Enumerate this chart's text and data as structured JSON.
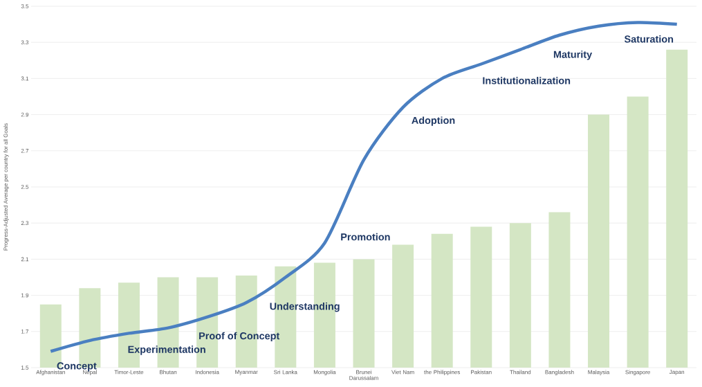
{
  "chart_data": {
    "type": "bar",
    "ylabel": "Progress-Adjusted Average per country for all Goals",
    "categories": [
      "Afghanistan",
      "Nepal",
      "Timor-Leste",
      "Bhutan",
      "Indonesia",
      "Myanmar",
      "Sri Lanka",
      "Mongolia",
      "Brunei Darussalam",
      "Viet Nam",
      "the Philippines",
      "Pakistan",
      "Thailand",
      "Bangladesh",
      "Malaysia",
      "Singapore",
      "Japan"
    ],
    "series": [
      {
        "color": "#d4e6c4",
        "values": [
          1.85,
          1.94,
          1.97,
          2.0,
          2.0,
          2.01,
          2.06,
          2.08,
          2.1,
          2.18,
          2.24,
          2.28,
          2.3,
          2.36,
          2.9,
          3.0,
          3.26
        ]
      },
      {
        "type": "line",
        "color": "#4a7fc1",
        "values": [
          1.59,
          1.65,
          1.69,
          1.72,
          1.78,
          1.86,
          2.0,
          2.19,
          2.65,
          2.94,
          3.1,
          3.18,
          3.26,
          3.34,
          3.39,
          3.41,
          3.4
        ]
      }
    ],
    "ylim": [
      1.5,
      3.5
    ],
    "yticks": [
      1.5,
      1.7,
      1.9,
      2.1,
      2.3,
      2.5,
      2.7,
      2.9,
      3.1,
      3.3,
      3.5
    ],
    "grid": "y",
    "annotations": [
      "Concept",
      "Experimentation",
      "Proof of Concept",
      "Understanding",
      "Promotion",
      "Adoption",
      "Institutionalization",
      "Maturity",
      "Saturation"
    ]
  }
}
